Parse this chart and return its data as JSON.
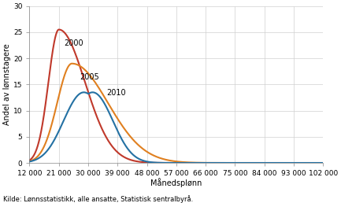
{
  "ylabel": "Andel av lønnstagere",
  "xlabel": "Månedsplønn",
  "source": "Kilde: Lønnsstatistikk, alle ansatte, Statistisk sentralbyrå.",
  "ylim": [
    0,
    30
  ],
  "yticks": [
    0,
    5,
    10,
    15,
    20,
    25,
    30
  ],
  "xticks": [
    12000,
    21000,
    30000,
    39000,
    48000,
    57000,
    66000,
    75000,
    84000,
    93000,
    102000
  ],
  "xtick_labels": [
    "12 000",
    "21 000",
    "30 000",
    "39 000",
    "48 000",
    "57 000",
    "66 000",
    "75 000",
    "84 000",
    "93 000",
    "102 000"
  ],
  "color_2000": "#c0392b",
  "color_2005": "#e08020",
  "color_2010": "#2471a3",
  "grid_color": "#d0d0d0",
  "bg_color": "#ffffff",
  "line_width": 1.5,
  "tick_fontsize": 6.5,
  "label_fontsize": 7,
  "annotation_fontsize": 7,
  "source_fontsize": 6,
  "ann_2000": [
    22500,
    22.5
  ],
  "ann_2005": [
    27500,
    16.0
  ],
  "ann_2010": [
    35500,
    13.0
  ]
}
